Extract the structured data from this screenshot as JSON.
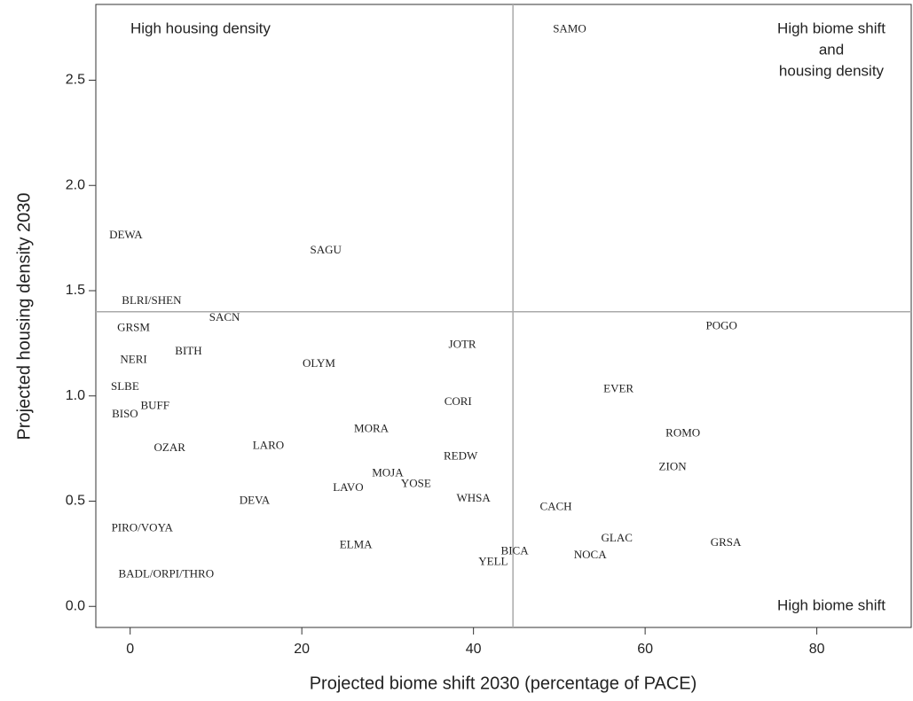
{
  "chart_data": {
    "type": "scatter",
    "x_label": "Projected biome shift 2030 (percentage of PACE)",
    "y_label": "Projected housing density 2030",
    "xlim": [
      -4,
      91
    ],
    "ylim": [
      -0.1,
      2.86
    ],
    "xticks": [
      0,
      20,
      40,
      60,
      80
    ],
    "yticks": [
      {
        "value": 0,
        "label": "0.0"
      },
      {
        "value": 0.5,
        "label": "0.5"
      },
      {
        "value": 1,
        "label": "1.0"
      },
      {
        "value": 1.5,
        "label": "1.5"
      },
      {
        "value": 2,
        "label": "2.0"
      },
      {
        "value": 2.5,
        "label": "2.5"
      }
    ],
    "vline": 44.6,
    "hline": 1.4,
    "annotations": [
      [
        "High housing density"
      ],
      [
        "High biome shift",
        "and",
        "housing density"
      ],
      [
        "High biome shift"
      ]
    ],
    "labels": [
      "SAMO",
      "DEWA",
      "SAGU",
      "BLRI/SHEN",
      "SACN",
      "GRSM",
      "POGO",
      "NERI",
      "BITH",
      "OLYM",
      "JOTR",
      "SLBE",
      "EVER",
      "CORI",
      "BISO",
      "BUFF",
      "MORA",
      "ROMO",
      "OZAR",
      "LARO",
      "REDW",
      "ZION",
      "MOJA",
      "YOSE",
      "LAVO",
      "WHSA",
      "DEVA",
      "CACH",
      "PIRO/VOYA",
      "GLAC",
      "GRSA",
      "ELMA",
      "BICA",
      "NOCA",
      "YELL",
      "BADL/ORPI/THRO"
    ],
    "x": [
      51.2,
      -0.5,
      22.8,
      2.5,
      11.0,
      0.4,
      68.9,
      0.4,
      6.8,
      22.0,
      38.7,
      -0.6,
      56.9,
      38.2,
      -0.6,
      2.9,
      28.1,
      64.4,
      4.6,
      16.1,
      38.5,
      63.2,
      30.0,
      33.3,
      25.4,
      40.0,
      14.5,
      49.6,
      1.4,
      56.7,
      69.4,
      26.3,
      44.8,
      53.6,
      42.3,
      4.2
    ],
    "values": [
      2.74,
      1.76,
      1.69,
      1.45,
      1.37,
      1.32,
      1.33,
      1.17,
      1.21,
      1.15,
      1.24,
      1.04,
      1.03,
      0.97,
      0.91,
      0.95,
      0.84,
      0.82,
      0.75,
      0.76,
      0.71,
      0.66,
      0.63,
      0.58,
      0.56,
      0.51,
      0.5,
      0.47,
      0.37,
      0.32,
      0.3,
      0.29,
      0.26,
      0.24,
      0.21,
      0.15
    ]
  }
}
